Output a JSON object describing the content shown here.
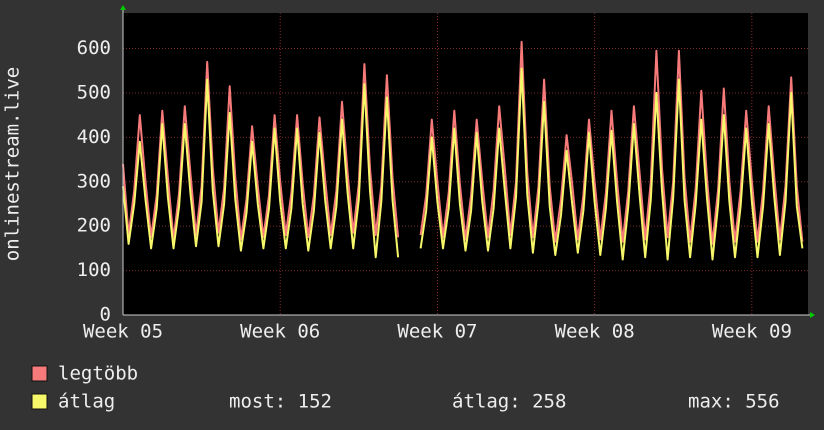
{
  "chart_data": {
    "type": "line",
    "y_label": "onlinestream.live",
    "categories": [
      "Week 05",
      null,
      null,
      null,
      null,
      null,
      null,
      null,
      null,
      null,
      null,
      null,
      null,
      null,
      null,
      null,
      null,
      null,
      null,
      null,
      null,
      null,
      null,
      null,
      null,
      null,
      null,
      null,
      "Week 06",
      null,
      null,
      null,
      null,
      null,
      null,
      null,
      null,
      null,
      null,
      null,
      null,
      null,
      null,
      null,
      null,
      null,
      null,
      null,
      null,
      null,
      null,
      null,
      null,
      null,
      null,
      null,
      "Week 07",
      null,
      null,
      null,
      null,
      null,
      null,
      null,
      null,
      null,
      null,
      null,
      null,
      null,
      null,
      null,
      null,
      null,
      null,
      null,
      null,
      null,
      null,
      null,
      null,
      null,
      null,
      null,
      "Week 08",
      null,
      null,
      null,
      null,
      null,
      null,
      null,
      null,
      null,
      null,
      null,
      null,
      null,
      null,
      null,
      null,
      null,
      null,
      null,
      null,
      null,
      null,
      null,
      null,
      null,
      null,
      null,
      "Week 09",
      null,
      null,
      null,
      null,
      null,
      null,
      null,
      null,
      null
    ],
    "series": [
      {
        "name": "legtöbb",
        "color": "#f77a7a",
        "values": [
          340,
          180,
          280,
          450,
          300,
          175,
          270,
          460,
          310,
          170,
          275,
          470,
          320,
          180,
          290,
          570,
          330,
          185,
          285,
          515,
          310,
          170,
          260,
          425,
          290,
          175,
          270,
          450,
          300,
          180,
          275,
          450,
          295,
          175,
          270,
          445,
          305,
          180,
          280,
          480,
          320,
          185,
          295,
          565,
          330,
          180,
          290,
          540,
          310,
          175,
          null,
          null,
          null,
          180,
          270,
          440,
          300,
          175,
          275,
          460,
          295,
          170,
          270,
          440,
          300,
          175,
          280,
          470,
          330,
          180,
          300,
          615,
          320,
          175,
          290,
          530,
          290,
          165,
          260,
          405,
          295,
          170,
          270,
          440,
          300,
          170,
          275,
          460,
          300,
          165,
          280,
          470,
          320,
          170,
          300,
          595,
          330,
          175,
          300,
          595,
          310,
          165,
          285,
          505,
          310,
          160,
          285,
          510,
          300,
          165,
          280,
          460,
          300,
          165,
          280,
          470,
          310,
          170,
          290,
          535,
          290,
          165
        ]
      },
      {
        "name": "átlag",
        "color": "#f7f76a",
        "values": [
          290,
          160,
          250,
          390,
          260,
          150,
          240,
          430,
          265,
          150,
          245,
          430,
          275,
          155,
          255,
          530,
          280,
          155,
          250,
          455,
          260,
          145,
          230,
          390,
          250,
          150,
          240,
          420,
          255,
          150,
          240,
          420,
          250,
          145,
          235,
          410,
          260,
          150,
          245,
          440,
          275,
          150,
          260,
          520,
          280,
          130,
          255,
          490,
          260,
          130,
          null,
          null,
          null,
          150,
          235,
          400,
          255,
          150,
          240,
          420,
          250,
          145,
          235,
          410,
          255,
          145,
          240,
          420,
          280,
          150,
          265,
          555,
          270,
          140,
          255,
          480,
          245,
          135,
          225,
          370,
          250,
          140,
          235,
          410,
          255,
          135,
          240,
          415,
          255,
          125,
          245,
          430,
          270,
          130,
          260,
          500,
          280,
          125,
          265,
          530,
          260,
          130,
          250,
          440,
          265,
          125,
          250,
          450,
          255,
          130,
          245,
          420,
          255,
          130,
          245,
          430,
          265,
          135,
          255,
          500,
          245,
          150
        ]
      }
    ],
    "stats": [
      "most: 152",
      "átlag: 258",
      "max: 556"
    ],
    "ylim": [
      0,
      680
    ],
    "yticks": [
      0,
      100,
      200,
      300,
      400,
      500,
      600
    ],
    "grid": true
  }
}
